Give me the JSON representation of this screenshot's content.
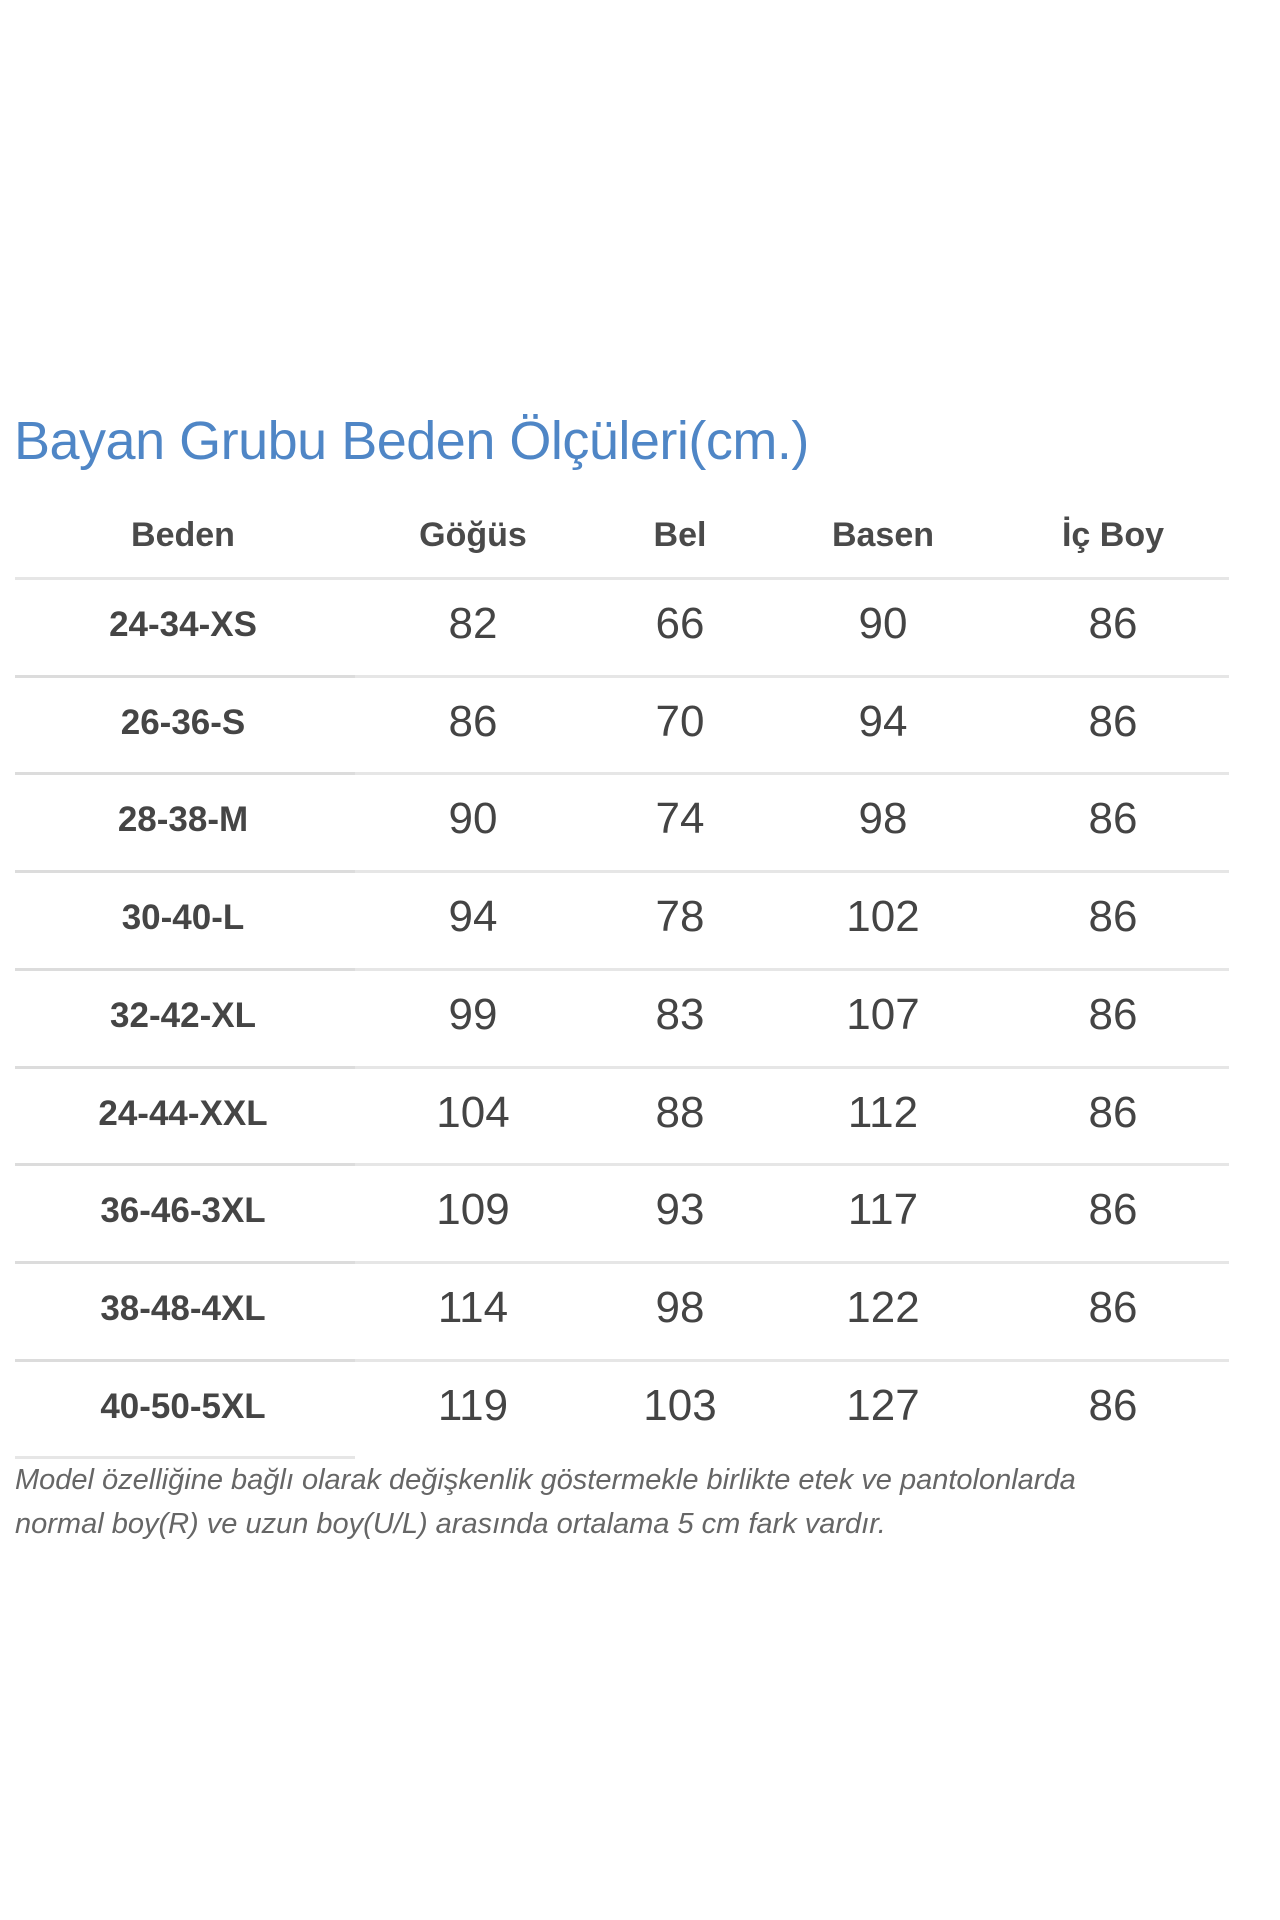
{
  "title": "Bayan Grubu Beden Ölçüleri(cm.)",
  "colors": {
    "title": "#4f86c6",
    "text": "#444444",
    "divider": "#e6e6e6"
  },
  "table": {
    "headers": [
      "Beden",
      "Göğüs",
      "Bel",
      "Basen",
      "İç Boy"
    ],
    "rows": [
      [
        "24-34-XS",
        "82",
        "66",
        "90",
        "86"
      ],
      [
        "26-36-S",
        "86",
        "70",
        "94",
        "86"
      ],
      [
        "28-38-M",
        "90",
        "74",
        "98",
        "86"
      ],
      [
        "30-40-L",
        "94",
        "78",
        "102",
        "86"
      ],
      [
        "32-42-XL",
        "99",
        "83",
        "107",
        "86"
      ],
      [
        "24-44-XXL",
        "104",
        "88",
        "112",
        "86"
      ],
      [
        "36-46-3XL",
        "109",
        "93",
        "117",
        "86"
      ],
      [
        "38-48-4XL",
        "114",
        "98",
        "122",
        "86"
      ],
      [
        "40-50-5XL",
        "119",
        "103",
        "127",
        "86"
      ]
    ]
  },
  "note": {
    "line1": "Model özelliğine bağlı olarak değişkenlik göstermekle birlikte etek ve pantolonlarda",
    "line2": "normal boy(R) ve uzun boy(U/L) arasında ortalama 5 cm fark vardır."
  }
}
